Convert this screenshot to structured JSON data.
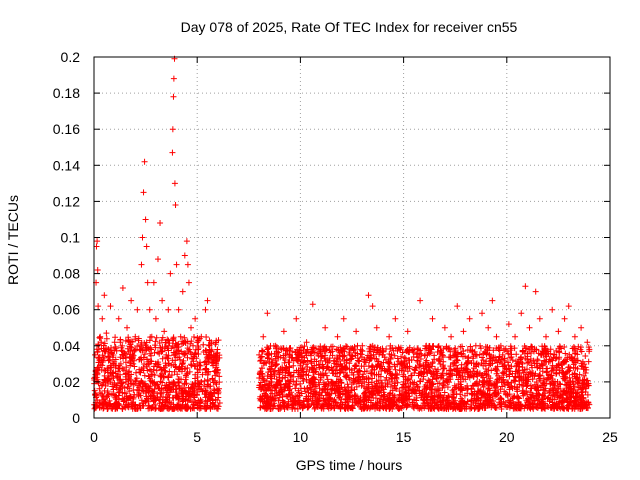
{
  "chart_data": {
    "type": "scatter",
    "title": "Day 078 of 2025, Rate Of TEC Index for receiver cn55",
    "xlabel": "GPS time / hours",
    "ylabel": "ROTI / TECUs",
    "xlim": [
      0,
      25
    ],
    "ylim": [
      0,
      0.2
    ],
    "x_ticks": [
      0,
      5,
      10,
      15,
      20,
      25
    ],
    "x_tick_labels": [
      "0",
      "5",
      "10",
      "15",
      "20",
      "25"
    ],
    "y_ticks": [
      0,
      0.02,
      0.04,
      0.06,
      0.08,
      0.1,
      0.12,
      0.14,
      0.16,
      0.18,
      0.2
    ],
    "y_tick_labels": [
      "0",
      "0.02",
      "0.04",
      "0.06",
      "0.08",
      "0.1",
      "0.12",
      "0.14",
      "0.16",
      "0.18",
      "0.2"
    ],
    "grid": true,
    "marker": "plus",
    "color": "#ff0000",
    "series": [
      {
        "points": [
          [
            0.0,
            0.022
          ],
          [
            0.05,
            0.035
          ],
          [
            0.1,
            0.075
          ],
          [
            0.12,
            0.095
          ],
          [
            0.15,
            0.098
          ],
          [
            0.18,
            0.082
          ],
          [
            0.2,
            0.062
          ],
          [
            0.25,
            0.028
          ],
          [
            0.3,
            0.045
          ],
          [
            0.35,
            0.018
          ],
          [
            0.4,
            0.055
          ],
          [
            0.45,
            0.032
          ],
          [
            0.5,
            0.068
          ],
          [
            0.55,
            0.021
          ],
          [
            0.6,
            0.047
          ],
          [
            0.7,
            0.038
          ],
          [
            0.8,
            0.062
          ],
          [
            0.9,
            0.025
          ],
          [
            1.0,
            0.042
          ],
          [
            1.1,
            0.018
          ],
          [
            1.2,
            0.055
          ],
          [
            1.3,
            0.03
          ],
          [
            1.4,
            0.072
          ],
          [
            1.5,
            0.035
          ],
          [
            1.6,
            0.05
          ],
          [
            1.7,
            0.022
          ],
          [
            1.8,
            0.065
          ],
          [
            1.9,
            0.03
          ],
          [
            2.0,
            0.045
          ],
          [
            2.1,
            0.06
          ],
          [
            2.2,
            0.038
          ],
          [
            2.3,
            0.085
          ],
          [
            2.35,
            0.1
          ],
          [
            2.4,
            0.125
          ],
          [
            2.45,
            0.142
          ],
          [
            2.5,
            0.11
          ],
          [
            2.55,
            0.095
          ],
          [
            2.6,
            0.075
          ],
          [
            2.7,
            0.06
          ],
          [
            2.8,
            0.045
          ],
          [
            2.9,
            0.075
          ],
          [
            3.0,
            0.055
          ],
          [
            3.1,
            0.088
          ],
          [
            3.2,
            0.108
          ],
          [
            3.3,
            0.065
          ],
          [
            3.4,
            0.048
          ],
          [
            3.5,
            0.035
          ],
          [
            3.6,
            0.06
          ],
          [
            3.7,
            0.08
          ],
          [
            3.8,
            0.147
          ],
          [
            3.82,
            0.16
          ],
          [
            3.85,
            0.178
          ],
          [
            3.87,
            0.188
          ],
          [
            3.9,
            0.199
          ],
          [
            3.92,
            0.13
          ],
          [
            3.95,
            0.118
          ],
          [
            4.0,
            0.085
          ],
          [
            4.1,
            0.06
          ],
          [
            4.2,
            0.045
          ],
          [
            4.3,
            0.07
          ],
          [
            4.4,
            0.09
          ],
          [
            4.5,
            0.098
          ],
          [
            4.55,
            0.085
          ],
          [
            4.6,
            0.075
          ],
          [
            4.7,
            0.05
          ],
          [
            4.8,
            0.04
          ],
          [
            4.9,
            0.055
          ],
          [
            5.0,
            0.03
          ],
          [
            5.2,
            0.045
          ],
          [
            5.4,
            0.06
          ],
          [
            5.5,
            0.065
          ],
          [
            5.6,
            0.04
          ],
          [
            5.8,
            0.035
          ],
          [
            6.0,
            0.025
          ],
          [
            8.0,
            0.035
          ],
          [
            8.2,
            0.045
          ],
          [
            8.4,
            0.058
          ],
          [
            8.6,
            0.03
          ],
          [
            8.8,
            0.04
          ],
          [
            9.0,
            0.025
          ],
          [
            9.2,
            0.048
          ],
          [
            9.5,
            0.035
          ],
          [
            9.8,
            0.055
          ],
          [
            10.0,
            0.03
          ],
          [
            10.3,
            0.042
          ],
          [
            10.6,
            0.063
          ],
          [
            10.9,
            0.038
          ],
          [
            11.2,
            0.05
          ],
          [
            11.5,
            0.028
          ],
          [
            11.8,
            0.045
          ],
          [
            12.1,
            0.055
          ],
          [
            12.4,
            0.035
          ],
          [
            12.7,
            0.048
          ],
          [
            13.0,
            0.04
          ],
          [
            13.3,
            0.068
          ],
          [
            13.5,
            0.062
          ],
          [
            13.7,
            0.05
          ],
          [
            14.0,
            0.035
          ],
          [
            14.3,
            0.045
          ],
          [
            14.6,
            0.055
          ],
          [
            14.9,
            0.03
          ],
          [
            15.2,
            0.048
          ],
          [
            15.5,
            0.038
          ],
          [
            15.8,
            0.065
          ],
          [
            16.1,
            0.04
          ],
          [
            16.4,
            0.055
          ],
          [
            16.7,
            0.032
          ],
          [
            17.0,
            0.05
          ],
          [
            17.3,
            0.045
          ],
          [
            17.6,
            0.062
          ],
          [
            17.9,
            0.048
          ],
          [
            18.2,
            0.055
          ],
          [
            18.5,
            0.04
          ],
          [
            18.8,
            0.058
          ],
          [
            19.1,
            0.05
          ],
          [
            19.3,
            0.065
          ],
          [
            19.5,
            0.045
          ],
          [
            19.8,
            0.035
          ],
          [
            20.1,
            0.052
          ],
          [
            20.4,
            0.045
          ],
          [
            20.7,
            0.058
          ],
          [
            20.9,
            0.073
          ],
          [
            21.1,
            0.05
          ],
          [
            21.4,
            0.07
          ],
          [
            21.6,
            0.055
          ],
          [
            21.9,
            0.045
          ],
          [
            22.2,
            0.06
          ],
          [
            22.5,
            0.048
          ],
          [
            22.8,
            0.055
          ],
          [
            23.0,
            0.062
          ],
          [
            23.3,
            0.045
          ],
          [
            23.6,
            0.05
          ],
          [
            23.9,
            0.042
          ],
          [
            24.0,
            0.038
          ]
        ]
      }
    ],
    "dense_band": [
      {
        "x_range": [
          0,
          6.1
        ],
        "y_range": [
          0.005,
          0.045
        ]
      },
      {
        "x_range": [
          8.0,
          24.0
        ],
        "y_range": [
          0.005,
          0.04
        ]
      }
    ]
  }
}
